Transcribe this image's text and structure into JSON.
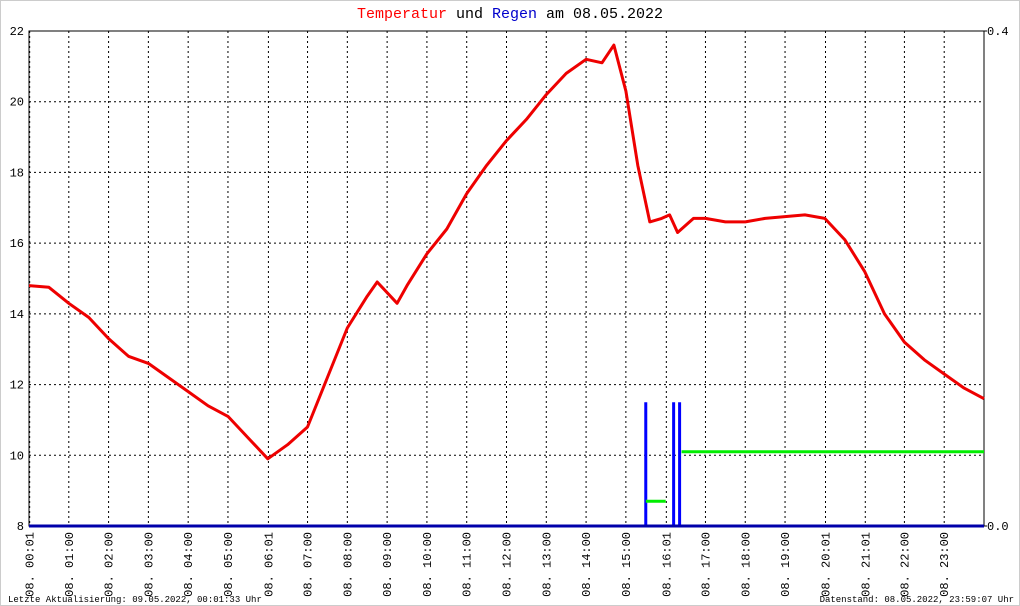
{
  "chart_data": {
    "type": "line",
    "title_parts": [
      {
        "text": "Temperatur",
        "color": "#ff0000"
      },
      {
        "text": "und",
        "color": "#000000"
      },
      {
        "text": "Regen",
        "color": "#0000cc"
      },
      {
        "text": "am 08.05.2022",
        "color": "#000000"
      }
    ],
    "footer_left": "Letzte Aktualisierung: 09.05.2022, 00:01:33 Uhr",
    "footer_right": "Datenstand: 08.05.2022, 23:59:07 Uhr",
    "xlim": [
      0,
      24
    ],
    "xticks": [
      {
        "value": 0.0167,
        "label": "08. 00:01"
      },
      {
        "value": 1,
        "label": "08. 01:00"
      },
      {
        "value": 2,
        "label": "08. 02:00"
      },
      {
        "value": 3,
        "label": "08. 03:00"
      },
      {
        "value": 4,
        "label": "08. 04:00"
      },
      {
        "value": 5,
        "label": "08. 05:00"
      },
      {
        "value": 6.0167,
        "label": "08. 06:01"
      },
      {
        "value": 7,
        "label": "08. 07:00"
      },
      {
        "value": 8,
        "label": "08. 08:00"
      },
      {
        "value": 9,
        "label": "08. 09:00"
      },
      {
        "value": 10,
        "label": "08. 10:00"
      },
      {
        "value": 11,
        "label": "08. 11:00"
      },
      {
        "value": 12,
        "label": "08. 12:00"
      },
      {
        "value": 13,
        "label": "08. 13:00"
      },
      {
        "value": 14,
        "label": "08. 14:00"
      },
      {
        "value": 15,
        "label": "08. 15:00"
      },
      {
        "value": 16.0167,
        "label": "08. 16:01"
      },
      {
        "value": 17,
        "label": "08. 17:00"
      },
      {
        "value": 18,
        "label": "08. 18:00"
      },
      {
        "value": 19,
        "label": "08. 19:00"
      },
      {
        "value": 20.0167,
        "label": "08. 20:01"
      },
      {
        "value": 21.0167,
        "label": "08. 21:01"
      },
      {
        "value": 22,
        "label": "08. 22:00"
      },
      {
        "value": 23,
        "label": "08. 23:00"
      }
    ],
    "ylim": [
      8,
      22
    ],
    "yticks": [
      8,
      10,
      12,
      14,
      16,
      18,
      20,
      22
    ],
    "y2lim": [
      0,
      0.4
    ],
    "y2ticks": [
      {
        "value": 0,
        "label": "0.0"
      },
      0.4
    ],
    "grid": true,
    "series": [
      {
        "color": "#ee0000",
        "style": "line",
        "x": [
          0,
          0.5,
          1,
          1.5,
          2,
          2.5,
          3,
          3.5,
          4,
          4.5,
          5,
          5.5,
          6,
          6.5,
          7,
          7.5,
          8,
          8.5,
          8.75,
          9.25,
          9.5,
          10,
          10.5,
          11,
          11.5,
          12,
          12.5,
          13,
          13.5,
          14,
          14.4,
          14.7,
          15,
          15.3,
          15.6,
          15.9,
          16.1,
          16.3,
          16.7,
          17,
          17.5,
          18,
          18.5,
          19,
          19.5,
          20,
          20.5,
          21,
          21.5,
          22,
          22.5,
          23,
          23.5,
          24
        ],
        "values": [
          14.8,
          14.75,
          14.3,
          13.9,
          13.3,
          12.8,
          12.6,
          12.2,
          11.8,
          11.4,
          11.1,
          10.5,
          9.9,
          10.3,
          10.8,
          12.2,
          13.6,
          14.5,
          14.9,
          14.3,
          14.8,
          15.7,
          16.4,
          17.4,
          18.2,
          18.9,
          19.5,
          20.2,
          20.8,
          21.2,
          21.1,
          21.6,
          20.3,
          18.2,
          16.6,
          16.7,
          16.8,
          16.3,
          16.7,
          16.7,
          16.6,
          16.6,
          16.7,
          16.75,
          16.8,
          16.7,
          16.1,
          15.2,
          14.0,
          13.2,
          12.7,
          12.3,
          11.9,
          11.6
        ]
      },
      {
        "color": "#0000ff",
        "style": "bar",
        "axis": "y2",
        "x": [
          15.5,
          16.2,
          16.35
        ],
        "values": [
          0.1,
          0.1,
          0.1
        ]
      },
      {
        "color": "#00ee00",
        "style": "line",
        "axis": "y2",
        "x": [
          15.5,
          16.0,
          16.2,
          16.4,
          24
        ],
        "values": [
          0.02,
          0.02,
          null,
          0.06,
          0.06
        ]
      }
    ]
  }
}
